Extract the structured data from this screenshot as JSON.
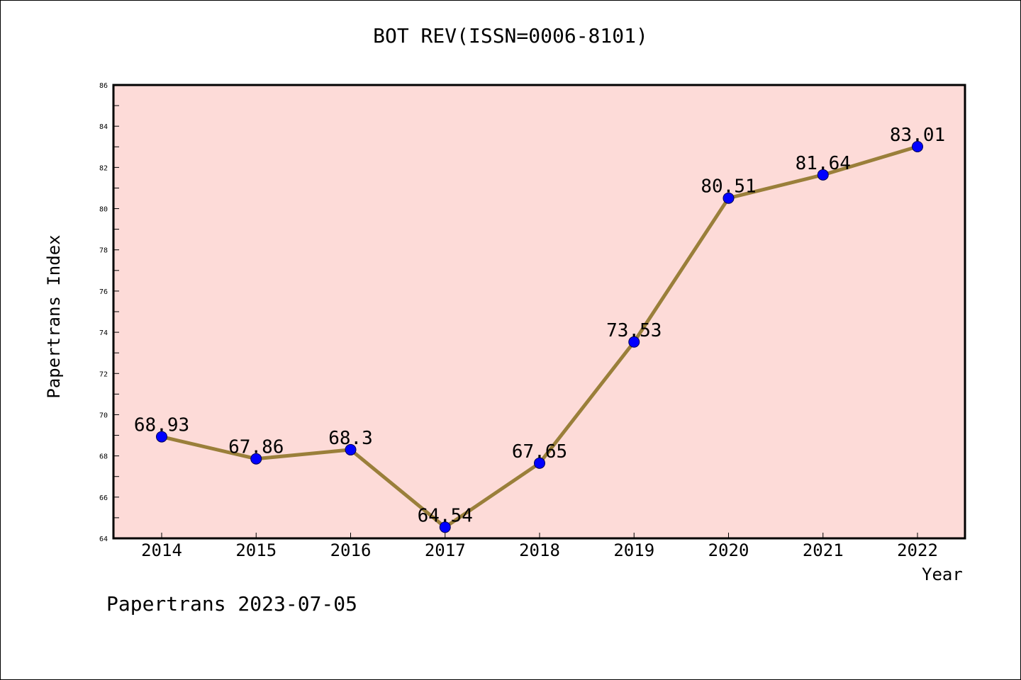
{
  "chart_data": {
    "type": "line",
    "title": "BOT REV(ISSN=0006-8101)",
    "xlabel": "Year",
    "ylabel": "Papertrans Index",
    "categories": [
      "2014",
      "2015",
      "2016",
      "2017",
      "2018",
      "2019",
      "2020",
      "2021",
      "2022"
    ],
    "series": [
      {
        "values": [
          68.93,
          67.86,
          68.3,
          64.54,
          67.65,
          73.53,
          80.51,
          81.64,
          83.01
        ]
      }
    ],
    "data_labels": [
      "68.93",
      "67.86",
      "68.3",
      "64.54",
      "67.65",
      "73.53",
      "80.51",
      "81.64",
      "83.01"
    ],
    "ylim": [
      64,
      86
    ],
    "y_ticks": [
      64,
      66,
      68,
      70,
      72,
      74,
      76,
      78,
      80,
      82,
      84,
      86
    ],
    "grid": false,
    "colors": {
      "plot_background": "#fddbd8",
      "line": "#9a7f3a",
      "marker": "#0000ff",
      "axes": "#000000"
    }
  },
  "footer": "Papertrans 2023-07-05"
}
